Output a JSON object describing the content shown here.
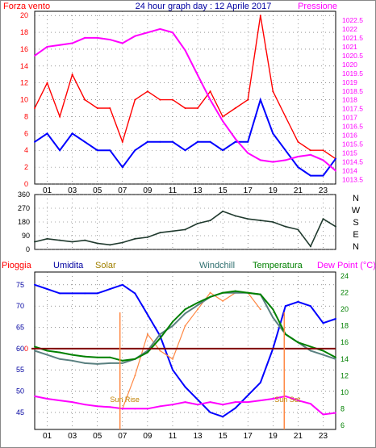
{
  "title": "24 hour graph day : 12 Aprile 2017",
  "chart_data": [
    {
      "id": "wind_pressure",
      "type": "line",
      "left_label": "Forza vento",
      "right_label": "Pressione",
      "left_ylim": [
        0,
        20.5
      ],
      "left_ticks": [
        "0",
        "2",
        "4",
        "6",
        "8",
        "10",
        "12",
        "14",
        "16",
        "18",
        "20"
      ],
      "right_ylim": [
        1013.25,
        1023.0
      ],
      "right_ticks": [
        "1013.5",
        "1014",
        "1014.5",
        "1015",
        "1015.5",
        "1016",
        "1016.5",
        "1017",
        "1017.5",
        "1018",
        "1018.5",
        "1019",
        "1019.5",
        "1020",
        "1020.5",
        "1021",
        "1021.5",
        "1022",
        "1022.5"
      ],
      "x_ticks": [
        "01",
        "03",
        "05",
        "07",
        "09",
        "11",
        "13",
        "15",
        "17",
        "19",
        "21",
        "23"
      ],
      "xlim": [
        0,
        24
      ],
      "grid": true,
      "series": [
        {
          "role": "gust",
          "color": "#ff0000",
          "x": [
            0,
            1,
            2,
            3,
            4,
            5,
            6,
            7,
            8,
            9,
            10,
            11,
            12,
            13,
            14,
            15,
            16,
            17,
            18,
            19,
            20,
            21,
            22,
            23,
            24
          ],
          "y": [
            9,
            12,
            8,
            13,
            10,
            9,
            9,
            5,
            10,
            11,
            10,
            10,
            9,
            9,
            11,
            8,
            9,
            10,
            20,
            11,
            8,
            5,
            4,
            4,
            3
          ]
        },
        {
          "role": "average",
          "color": "#0000ff",
          "x": [
            0,
            1,
            2,
            3,
            4,
            5,
            6,
            7,
            8,
            9,
            10,
            11,
            12,
            13,
            14,
            15,
            16,
            17,
            18,
            19,
            20,
            21,
            22,
            23,
            24
          ],
          "y": [
            5,
            6,
            4,
            6,
            5,
            4,
            4,
            2,
            4,
            5,
            5,
            5,
            4,
            5,
            5,
            4,
            5,
            5,
            10,
            6,
            4,
            2,
            1,
            1,
            3
          ]
        },
        {
          "role": "pressure",
          "color": "#ff00ff",
          "x": [
            0,
            1,
            2,
            3,
            4,
            5,
            6,
            7,
            8,
            9,
            10,
            11,
            12,
            13,
            14,
            15,
            16,
            17,
            18,
            19,
            20,
            21,
            22,
            23,
            24
          ],
          "y": [
            1020.5,
            1021.0,
            1021.1,
            1021.2,
            1021.5,
            1021.5,
            1021.4,
            1021.2,
            1021.6,
            1021.8,
            1022.0,
            1021.8,
            1020.8,
            1019.4,
            1018.0,
            1016.8,
            1015.8,
            1015.0,
            1014.6,
            1014.5,
            1014.6,
            1014.8,
            1014.9,
            1014.6,
            1014.0
          ]
        }
      ]
    },
    {
      "id": "wind_direction",
      "type": "line",
      "right_label": "NWSEN",
      "ylim": [
        0,
        360
      ],
      "y_ticks": [
        "0",
        "90",
        "180",
        "270",
        "360"
      ],
      "xlim": [
        0,
        24
      ],
      "grid": true,
      "series": [
        {
          "role": "direction",
          "color": "#203a2e",
          "x": [
            0,
            1,
            2,
            3,
            4,
            5,
            6,
            7,
            8,
            9,
            10,
            11,
            12,
            13,
            14,
            15,
            16,
            17,
            18,
            19,
            20,
            21,
            22,
            23,
            24
          ],
          "y": [
            50,
            70,
            60,
            50,
            60,
            40,
            30,
            45,
            70,
            80,
            110,
            120,
            130,
            170,
            190,
            250,
            220,
            200,
            190,
            180,
            150,
            130,
            20,
            200,
            150
          ]
        }
      ]
    },
    {
      "id": "temp_humidity",
      "type": "line",
      "labels": [
        "Pioggia",
        "Umidita",
        "Solar",
        "Windchill",
        "Temperatura",
        "Dew Point (°C)"
      ],
      "left_ylim": [
        41,
        78
      ],
      "left_ticks": [
        "45",
        "50",
        "55",
        "60",
        "65",
        "70",
        "75"
      ],
      "right_ylim": [
        5.5,
        24.5
      ],
      "right_ticks": [
        "6",
        "8",
        "10",
        "12",
        "14",
        "16",
        "18",
        "20",
        "22",
        "24"
      ],
      "rain_zero_label": "0",
      "xlim": [
        0,
        24
      ],
      "annotations": [
        "Sun Rise",
        "Sun Set"
      ],
      "grid": true,
      "series": [
        {
          "role": "humidity",
          "color": "#0000ff",
          "x": [
            0,
            1,
            2,
            3,
            4,
            5,
            6,
            7,
            8,
            9,
            10,
            11,
            12,
            13,
            14,
            15,
            16,
            17,
            18,
            19,
            20,
            21,
            22,
            23,
            24
          ],
          "y": [
            75,
            74,
            73,
            73,
            73,
            73,
            74,
            75,
            73,
            68,
            63,
            55,
            51,
            48,
            45,
            44,
            46,
            49,
            52,
            60,
            70,
            71,
            70,
            66,
            67
          ]
        },
        {
          "role": "solar",
          "color": "#ff8844",
          "x": [
            0,
            1,
            2,
            3,
            4,
            5,
            6,
            7,
            8,
            9,
            10,
            11,
            12,
            13,
            14,
            15,
            16,
            17,
            18,
            19,
            20,
            21,
            22,
            23,
            24
          ],
          "y": [
            null,
            null,
            null,
            null,
            null,
            null,
            null,
            8,
            12,
            17,
            15,
            14,
            18,
            20,
            22,
            21,
            22,
            22,
            20,
            null,
            null,
            null,
            null,
            null,
            null
          ]
        },
        {
          "role": "windchill",
          "color": "#5a8080",
          "x": [
            0,
            1,
            2,
            3,
            4,
            5,
            6,
            7,
            8,
            9,
            10,
            11,
            12,
            13,
            14,
            15,
            16,
            17,
            18,
            19,
            20,
            21,
            22,
            23,
            24
          ],
          "y": [
            15,
            14.5,
            14,
            13.8,
            13.5,
            13.4,
            13.5,
            13.5,
            14,
            15,
            17,
            18,
            19.5,
            20.5,
            21.5,
            22,
            22,
            22,
            21.8,
            19,
            17,
            16,
            15,
            14.5,
            14
          ]
        },
        {
          "role": "temperature",
          "color": "#008000",
          "x": [
            0,
            1,
            2,
            3,
            4,
            5,
            6,
            7,
            8,
            9,
            10,
            11,
            12,
            13,
            14,
            15,
            16,
            17,
            18,
            19,
            20,
            21,
            22,
            23,
            24
          ],
          "y": [
            15.5,
            15,
            14.8,
            14.5,
            14.3,
            14.2,
            14.2,
            13.8,
            14,
            14.8,
            16.5,
            18.5,
            20,
            20.8,
            21.5,
            22,
            22.2,
            22,
            21.8,
            20,
            17,
            16,
            15.5,
            15,
            14.2
          ]
        },
        {
          "role": "dewpoint",
          "color": "#ff00ff",
          "x": [
            0,
            1,
            2,
            3,
            4,
            5,
            6,
            7,
            8,
            9,
            10,
            11,
            12,
            13,
            14,
            15,
            16,
            17,
            18,
            19,
            20,
            21,
            22,
            23,
            24
          ],
          "y": [
            9.5,
            9.2,
            9,
            8.8,
            8.5,
            8.3,
            8.2,
            8,
            8,
            8,
            8.3,
            8.5,
            8.8,
            8.5,
            8.8,
            8.5,
            8.8,
            8.8,
            9,
            9.2,
            9.5,
            9,
            8.6,
            7.3,
            7.5
          ]
        },
        {
          "role": "rain",
          "color": "#800000",
          "x": [
            0,
            24
          ],
          "y": [
            0,
            0
          ]
        }
      ]
    }
  ]
}
